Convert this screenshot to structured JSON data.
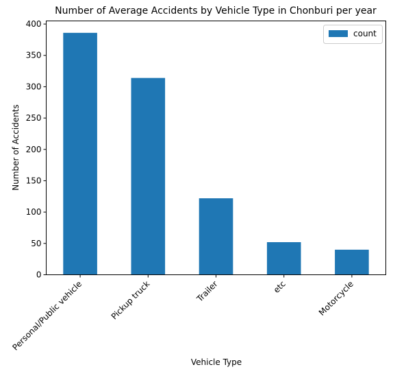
{
  "chart_data": {
    "type": "bar",
    "title": "Number of Average Accidents by Vehicle Type in Chonburi per year",
    "xlabel": "Vehicle Type",
    "ylabel": "Number of Accidents",
    "categories": [
      "Personal/Public vehicle",
      "Pickup truck",
      "Trailer",
      "etc",
      "Motorcycle"
    ],
    "series": [
      {
        "name": "count",
        "values": [
          386,
          314,
          122,
          52,
          40
        ],
        "color": "#1f77b4"
      }
    ],
    "ylim": [
      0,
      405
    ],
    "yticks": [
      0,
      50,
      100,
      150,
      200,
      250,
      300,
      350,
      400
    ],
    "legend": "top-right",
    "grid": false
  }
}
